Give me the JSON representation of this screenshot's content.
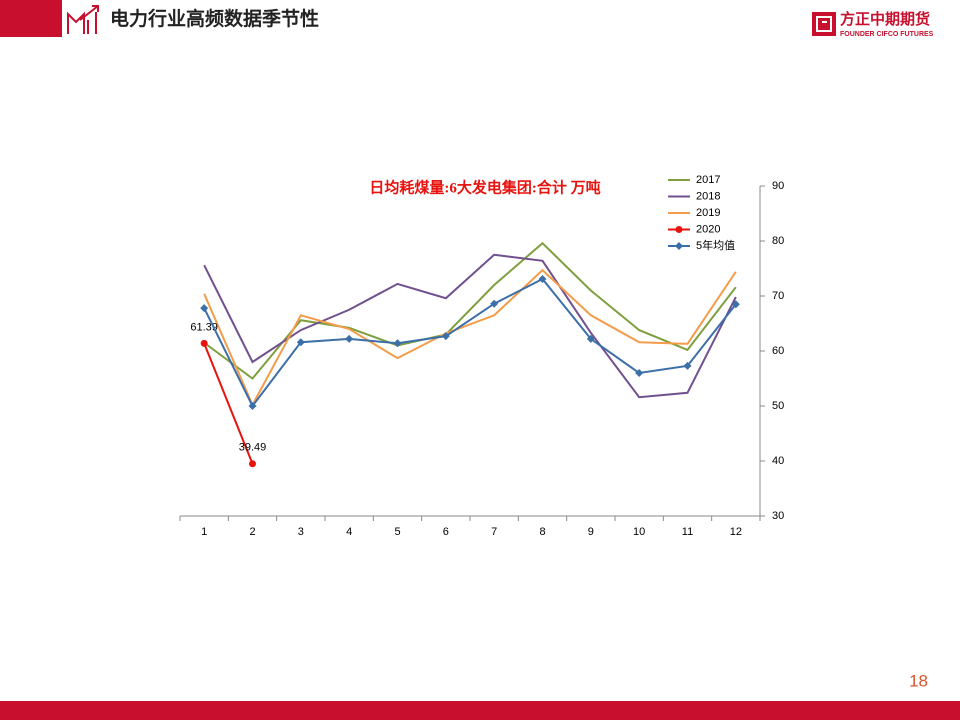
{
  "header": {
    "title": "电力行业高频数据季节性"
  },
  "logo": {
    "name": "方正中期期货",
    "english": "FOUNDER CIFCO FUTURES"
  },
  "page_number": "18",
  "chart_data": {
    "type": "line",
    "title": "日均耗煤量:6大发电集团:合计 万吨",
    "categories": [
      "1",
      "2",
      "3",
      "4",
      "5",
      "6",
      "7",
      "8",
      "9",
      "10",
      "11",
      "12"
    ],
    "ylim": [
      30,
      90
    ],
    "yticks": [
      30,
      40,
      50,
      60,
      70,
      80,
      90
    ],
    "y_axis_side": "right",
    "grid": false,
    "series": [
      {
        "name": "2017",
        "color": "#7f9f3f",
        "values": [
          61.5,
          55,
          65.6,
          64.2,
          61,
          63,
          72,
          79.6,
          71,
          63.8,
          60.2,
          71.6
        ]
      },
      {
        "name": "2018",
        "color": "#70508f",
        "values": [
          75.6,
          58,
          63.8,
          67.5,
          72.2,
          69.6,
          77.5,
          76.4,
          63.3,
          51.6,
          52.4,
          69.8
        ]
      },
      {
        "name": "2019",
        "color": "#f39c4a",
        "values": [
          70.4,
          50.2,
          66.5,
          64,
          58.7,
          63.2,
          66.5,
          74.7,
          66.5,
          61.6,
          61.3,
          74.4
        ]
      },
      {
        "name": "2020",
        "color": "#e8120f",
        "marker": "circle",
        "data_labels": true,
        "values": [
          61.39,
          39.49,
          null,
          null,
          null,
          null,
          null,
          null,
          null,
          null,
          null,
          null
        ]
      },
      {
        "name": "5年均值",
        "color": "#3c6ea8",
        "marker": "diamond",
        "values": [
          67.8,
          50,
          61.6,
          62.2,
          61.4,
          62.7,
          68.6,
          73.1,
          62.2,
          56,
          57.3,
          68.5
        ]
      }
    ]
  }
}
